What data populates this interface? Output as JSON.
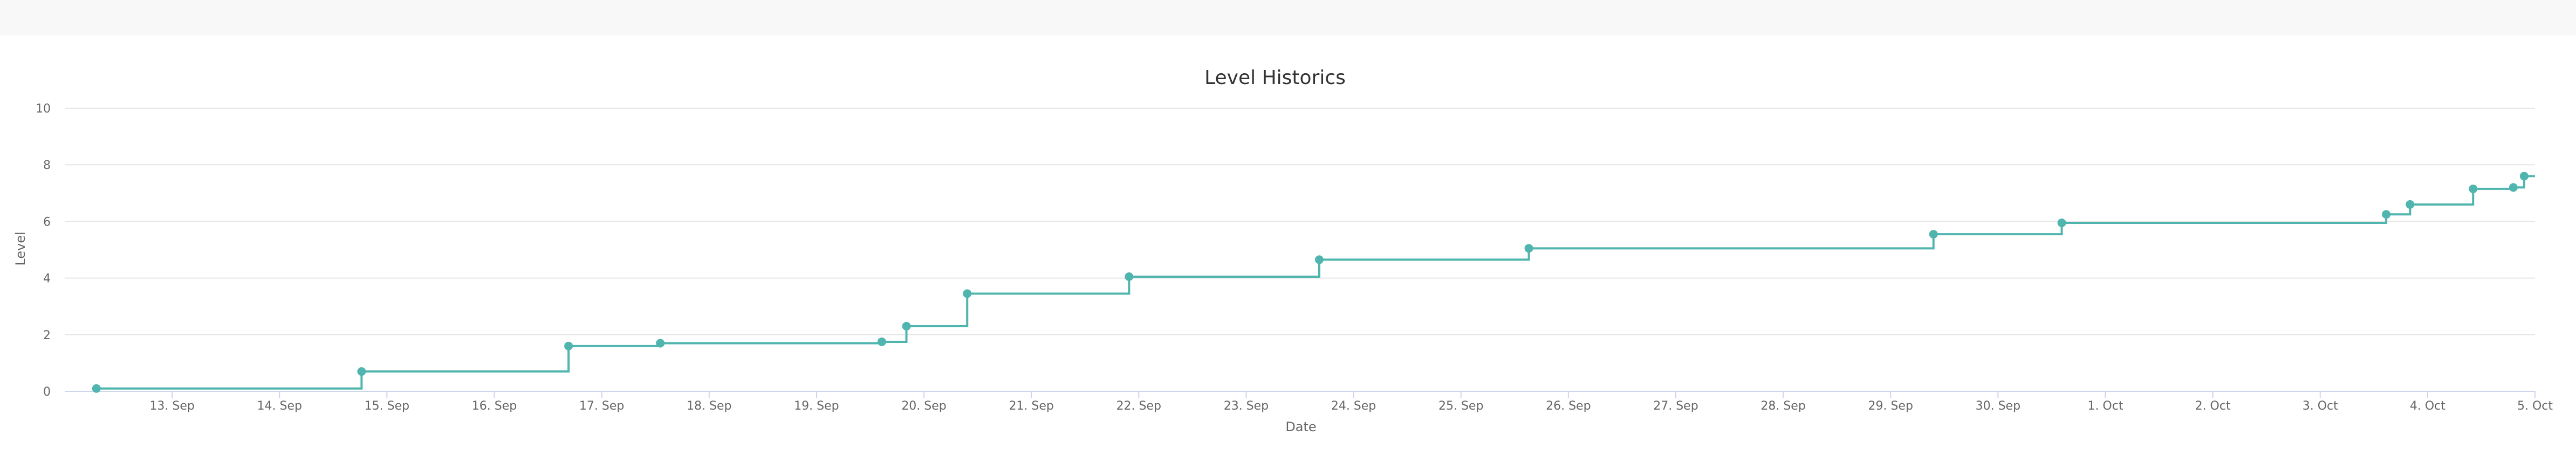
{
  "chart_data": {
    "type": "line",
    "step": true,
    "title": "Level Historics",
    "xlabel": "Date",
    "ylabel": "Level",
    "ylim": [
      0,
      10
    ],
    "yticks": [
      0,
      2,
      4,
      6,
      8,
      10
    ],
    "xlim": [
      "2023-09-12T00:00",
      "2023-10-05T00:00"
    ],
    "xticks": [
      {
        "date": "2023-09-13T00:00",
        "label": "13. Sep"
      },
      {
        "date": "2023-09-14T00:00",
        "label": "14. Sep"
      },
      {
        "date": "2023-09-15T00:00",
        "label": "15. Sep"
      },
      {
        "date": "2023-09-16T00:00",
        "label": "16. Sep"
      },
      {
        "date": "2023-09-17T00:00",
        "label": "17. Sep"
      },
      {
        "date": "2023-09-18T00:00",
        "label": "18. Sep"
      },
      {
        "date": "2023-09-19T00:00",
        "label": "19. Sep"
      },
      {
        "date": "2023-09-20T00:00",
        "label": "20. Sep"
      },
      {
        "date": "2023-09-21T00:00",
        "label": "21. Sep"
      },
      {
        "date": "2023-09-22T00:00",
        "label": "22. Sep"
      },
      {
        "date": "2023-09-23T00:00",
        "label": "23. Sep"
      },
      {
        "date": "2023-09-24T00:00",
        "label": "24. Sep"
      },
      {
        "date": "2023-09-25T00:00",
        "label": "25. Sep"
      },
      {
        "date": "2023-09-26T00:00",
        "label": "26. Sep"
      },
      {
        "date": "2023-09-27T00:00",
        "label": "27. Sep"
      },
      {
        "date": "2023-09-28T00:00",
        "label": "28. Sep"
      },
      {
        "date": "2023-09-29T00:00",
        "label": "29. Sep"
      },
      {
        "date": "2023-09-30T00:00",
        "label": "30. Sep"
      },
      {
        "date": "2023-10-01T00:00",
        "label": "1. Oct"
      },
      {
        "date": "2023-10-02T00:00",
        "label": "2. Oct"
      },
      {
        "date": "2023-10-03T00:00",
        "label": "3. Oct"
      },
      {
        "date": "2023-10-04T00:00",
        "label": "4. Oct"
      },
      {
        "date": "2023-10-05T00:00",
        "label": "5. Oct"
      }
    ],
    "grid": true,
    "legend": "none",
    "color": "#4fb5ae",
    "series": [
      {
        "points": [
          {
            "x": "2023-09-12T07:05",
            "y": 0.1
          },
          {
            "x": "2023-09-14T18:20",
            "y": 0.7
          },
          {
            "x": "2023-09-16T16:35",
            "y": 1.6
          },
          {
            "x": "2023-09-17T13:05",
            "y": 1.7
          },
          {
            "x": "2023-09-19T14:35",
            "y": 1.75
          },
          {
            "x": "2023-09-19T20:05",
            "y": 2.3
          },
          {
            "x": "2023-09-20T09:40",
            "y": 3.45
          },
          {
            "x": "2023-09-21T21:50",
            "y": 4.05
          },
          {
            "x": "2023-09-23T16:20",
            "y": 4.65
          },
          {
            "x": "2023-09-25T15:10",
            "y": 5.05
          },
          {
            "x": "2023-09-29T09:35",
            "y": 5.55
          },
          {
            "x": "2023-09-30T14:15",
            "y": 5.95
          },
          {
            "x": "2023-10-03T14:45",
            "y": 6.25
          },
          {
            "x": "2023-10-03T20:05",
            "y": 6.6
          },
          {
            "x": "2023-10-04T10:10",
            "y": 7.15
          },
          {
            "x": "2023-10-04T19:10",
            "y": 7.2
          },
          {
            "x": "2023-10-04T21:35",
            "y": 7.6
          }
        ]
      }
    ]
  }
}
